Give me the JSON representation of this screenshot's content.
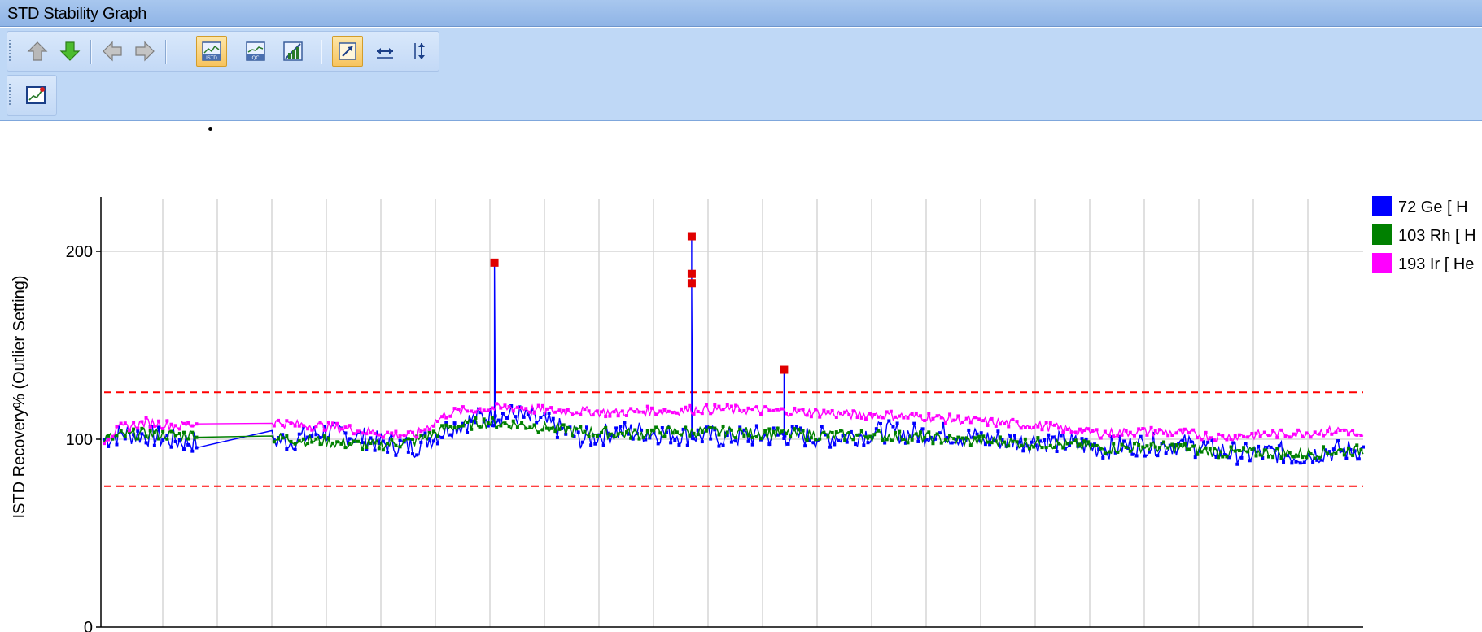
{
  "window": {
    "title": "STD Stability Graph"
  },
  "toolbar": {
    "row1": [
      {
        "icon": "arrow-up-icon",
        "active": false
      },
      {
        "icon": "arrow-down-icon",
        "active": false
      },
      {
        "icon": "arrow-left-icon",
        "active": false
      },
      {
        "icon": "arrow-right-icon",
        "active": false
      },
      {
        "icon": "istd-graph-icon",
        "active": true
      },
      {
        "icon": "qc-graph-icon",
        "active": false
      },
      {
        "icon": "calibration-graph-icon",
        "active": false
      },
      {
        "icon": "autoscale-icon",
        "active": true
      },
      {
        "icon": "fit-width-icon",
        "active": false
      },
      {
        "icon": "fit-height-icon",
        "active": false
      }
    ],
    "row2": [
      {
        "icon": "chart-settings-icon",
        "active": false
      }
    ]
  },
  "chart_data": {
    "type": "line",
    "title": "",
    "xlabel": "",
    "ylabel": "ISTD Recovery% (Outlier Setting)",
    "ylim": [
      0,
      230
    ],
    "yticks": [
      0,
      100,
      200
    ],
    "grid": true,
    "limits": [
      {
        "value": 125,
        "color": "#ff0000",
        "style": "dashed"
      },
      {
        "value": 75,
        "color": "#ff0000",
        "style": "dashed"
      }
    ],
    "legend_position": "top-right",
    "series": [
      {
        "name": "72 Ge [ H",
        "color": "#0000ff",
        "anchors": [
          [
            0,
            100
          ],
          [
            4,
            103
          ],
          [
            10,
            102
          ],
          [
            18,
            99
          ],
          [
            28,
            98
          ],
          [
            36,
            101
          ],
          [
            44,
            99
          ],
          [
            52,
            104
          ],
          [
            60,
            102
          ],
          [
            66,
            98
          ],
          [
            74,
            96
          ],
          [
            82,
            106
          ],
          [
            90,
            112
          ],
          [
            98,
            113
          ],
          [
            106,
            108
          ],
          [
            114,
            100
          ],
          [
            122,
            104
          ],
          [
            128,
            104
          ],
          [
            134,
            103
          ],
          [
            142,
            102
          ],
          [
            148,
            101
          ],
          [
            160,
            102
          ],
          [
            172,
            101
          ],
          [
            178,
            102
          ],
          [
            186,
            104
          ],
          [
            192,
            103
          ],
          [
            196,
            103
          ],
          [
            200,
            103
          ],
          [
            206,
            101
          ],
          [
            212,
            100
          ],
          [
            218,
            99
          ],
          [
            224,
            99
          ],
          [
            230,
            98
          ],
          [
            238,
            95
          ],
          [
            246,
            97
          ],
          [
            250,
            97
          ],
          [
            258,
            97
          ],
          [
            266,
            94
          ],
          [
            272,
            92
          ],
          [
            280,
            93
          ],
          [
            284,
            91
          ],
          [
            290,
            93
          ],
          [
            296,
            94
          ],
          [
            300,
            94
          ]
        ],
        "outliers": [
          [
            93,
            194
          ],
          [
            140,
            208
          ],
          [
            140,
            188
          ],
          [
            140,
            183
          ],
          [
            162,
            137
          ]
        ]
      },
      {
        "name": "103 Rh [ H",
        "color": "#008000",
        "anchors": [
          [
            0,
            100
          ],
          [
            4,
            102
          ],
          [
            10,
            103
          ],
          [
            18,
            102
          ],
          [
            28,
            104
          ],
          [
            36,
            102
          ],
          [
            44,
            100
          ],
          [
            52,
            99
          ],
          [
            60,
            97
          ],
          [
            66,
            97
          ],
          [
            74,
            99
          ],
          [
            82,
            106
          ],
          [
            90,
            109
          ],
          [
            98,
            108
          ],
          [
            106,
            106
          ],
          [
            114,
            104
          ],
          [
            122,
            103
          ],
          [
            128,
            103
          ],
          [
            134,
            104
          ],
          [
            142,
            104
          ],
          [
            148,
            104
          ],
          [
            160,
            103
          ],
          [
            172,
            102
          ],
          [
            178,
            102
          ],
          [
            186,
            102
          ],
          [
            192,
            101
          ],
          [
            196,
            101
          ],
          [
            200,
            100
          ],
          [
            206,
            99
          ],
          [
            212,
            99
          ],
          [
            218,
            98
          ],
          [
            224,
            98
          ],
          [
            230,
            97
          ],
          [
            238,
            95
          ],
          [
            246,
            96
          ],
          [
            250,
            96
          ],
          [
            258,
            95
          ],
          [
            266,
            93
          ],
          [
            272,
            93
          ],
          [
            280,
            93
          ],
          [
            284,
            92
          ],
          [
            290,
            93
          ],
          [
            296,
            94
          ],
          [
            300,
            94
          ]
        ],
        "outliers": []
      },
      {
        "name": "193 Ir [ He",
        "color": "#ff00ff",
        "anchors": [
          [
            0,
            100
          ],
          [
            4,
            106
          ],
          [
            10,
            109
          ],
          [
            18,
            107
          ],
          [
            28,
            110
          ],
          [
            36,
            111
          ],
          [
            44,
            108
          ],
          [
            52,
            107
          ],
          [
            60,
            105
          ],
          [
            66,
            103
          ],
          [
            74,
            102
          ],
          [
            82,
            114
          ],
          [
            90,
            116
          ],
          [
            98,
            117
          ],
          [
            106,
            115
          ],
          [
            114,
            115
          ],
          [
            122,
            114
          ],
          [
            128,
            115
          ],
          [
            134,
            115
          ],
          [
            142,
            116
          ],
          [
            148,
            116
          ],
          [
            160,
            115
          ],
          [
            172,
            114
          ],
          [
            178,
            113
          ],
          [
            186,
            113
          ],
          [
            192,
            112
          ],
          [
            196,
            112
          ],
          [
            200,
            111
          ],
          [
            206,
            110
          ],
          [
            212,
            109
          ],
          [
            218,
            108
          ],
          [
            224,
            107
          ],
          [
            230,
            105
          ],
          [
            238,
            103
          ],
          [
            246,
            104
          ],
          [
            250,
            104
          ],
          [
            258,
            103
          ],
          [
            266,
            101
          ],
          [
            272,
            102
          ],
          [
            280,
            103
          ],
          [
            284,
            103
          ],
          [
            290,
            104
          ],
          [
            296,
            105
          ],
          [
            300,
            100
          ]
        ],
        "outliers": []
      }
    ]
  }
}
